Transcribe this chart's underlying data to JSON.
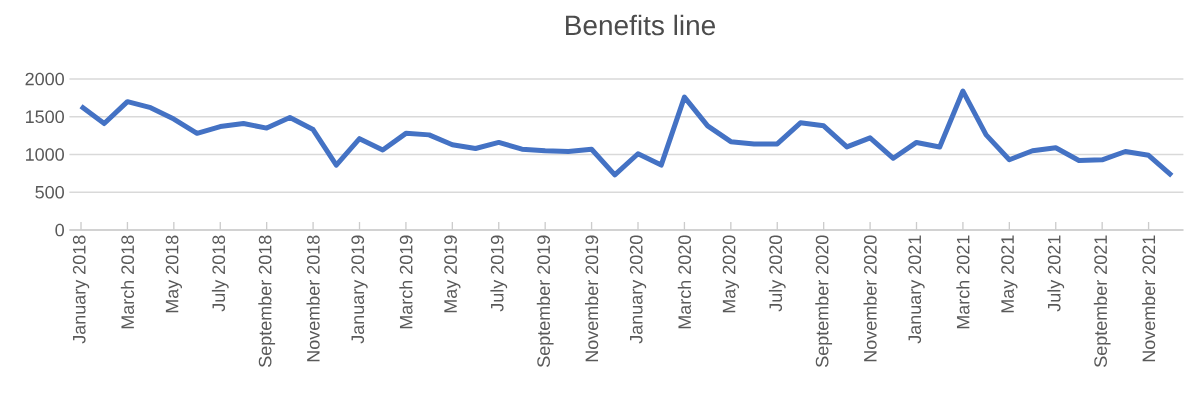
{
  "chart_data": {
    "type": "line",
    "title": "Benefits line",
    "categories": [
      "January 2018",
      null,
      "March 2018",
      null,
      "May 2018",
      null,
      "July 2018",
      null,
      "September 2018",
      null,
      "November 2018",
      null,
      "January 2019",
      null,
      "March 2019",
      null,
      "May 2019",
      null,
      "July 2019",
      null,
      "September 2019",
      null,
      "November 2019",
      null,
      "January 2020",
      null,
      "March 2020",
      null,
      "May 2020",
      null,
      "July 2020",
      null,
      "September 2020",
      null,
      "November 2020",
      null,
      "January 2021",
      null,
      "March 2021",
      null,
      "May 2021",
      null,
      "July 2021",
      null,
      "September 2021",
      null,
      "November 2021",
      null
    ],
    "values": [
      1640,
      1410,
      1700,
      1620,
      1470,
      1280,
      1370,
      1410,
      1350,
      1490,
      1330,
      860,
      1210,
      1060,
      1280,
      1260,
      1130,
      1080,
      1160,
      1070,
      1050,
      1040,
      1070,
      730,
      1010,
      860,
      1760,
      1380,
      1170,
      1140,
      1140,
      1420,
      1380,
      1100,
      1220,
      950,
      1160,
      1100,
      1840,
      1260,
      930,
      1050,
      1090,
      920,
      930,
      1040,
      990,
      720
    ],
    "color": "#4472c4",
    "ylim": [
      0,
      2000
    ],
    "yticks": [
      0,
      500,
      1000,
      1500,
      2000
    ],
    "grid": "y",
    "legend": false,
    "marker": "none",
    "line_style": "solid"
  }
}
